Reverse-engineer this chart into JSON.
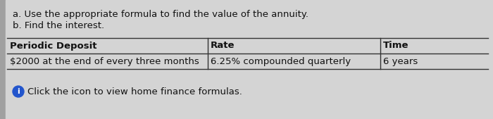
{
  "bg_color": "#c8c8c8",
  "content_bg": "#d4d4d4",
  "left_bar_color": "#b0b0b0",
  "text_color": "#111111",
  "line_a": "a. Use the appropriate formula to find the value of the annuity.",
  "line_b": "b. Find the interest.",
  "col1_header": "Periodic Deposit",
  "col2_header": "Rate",
  "col3_header": "Time",
  "col1_data": "$2000 at the end of every three months",
  "col2_data": "6.25% compounded quarterly",
  "col3_data": "6 years",
  "footer_text": "Click the icon to view home finance formulas.",
  "icon_color": "#2255cc",
  "line_color": "#333333",
  "font_size": 9.5,
  "bold_font_size": 9.5
}
